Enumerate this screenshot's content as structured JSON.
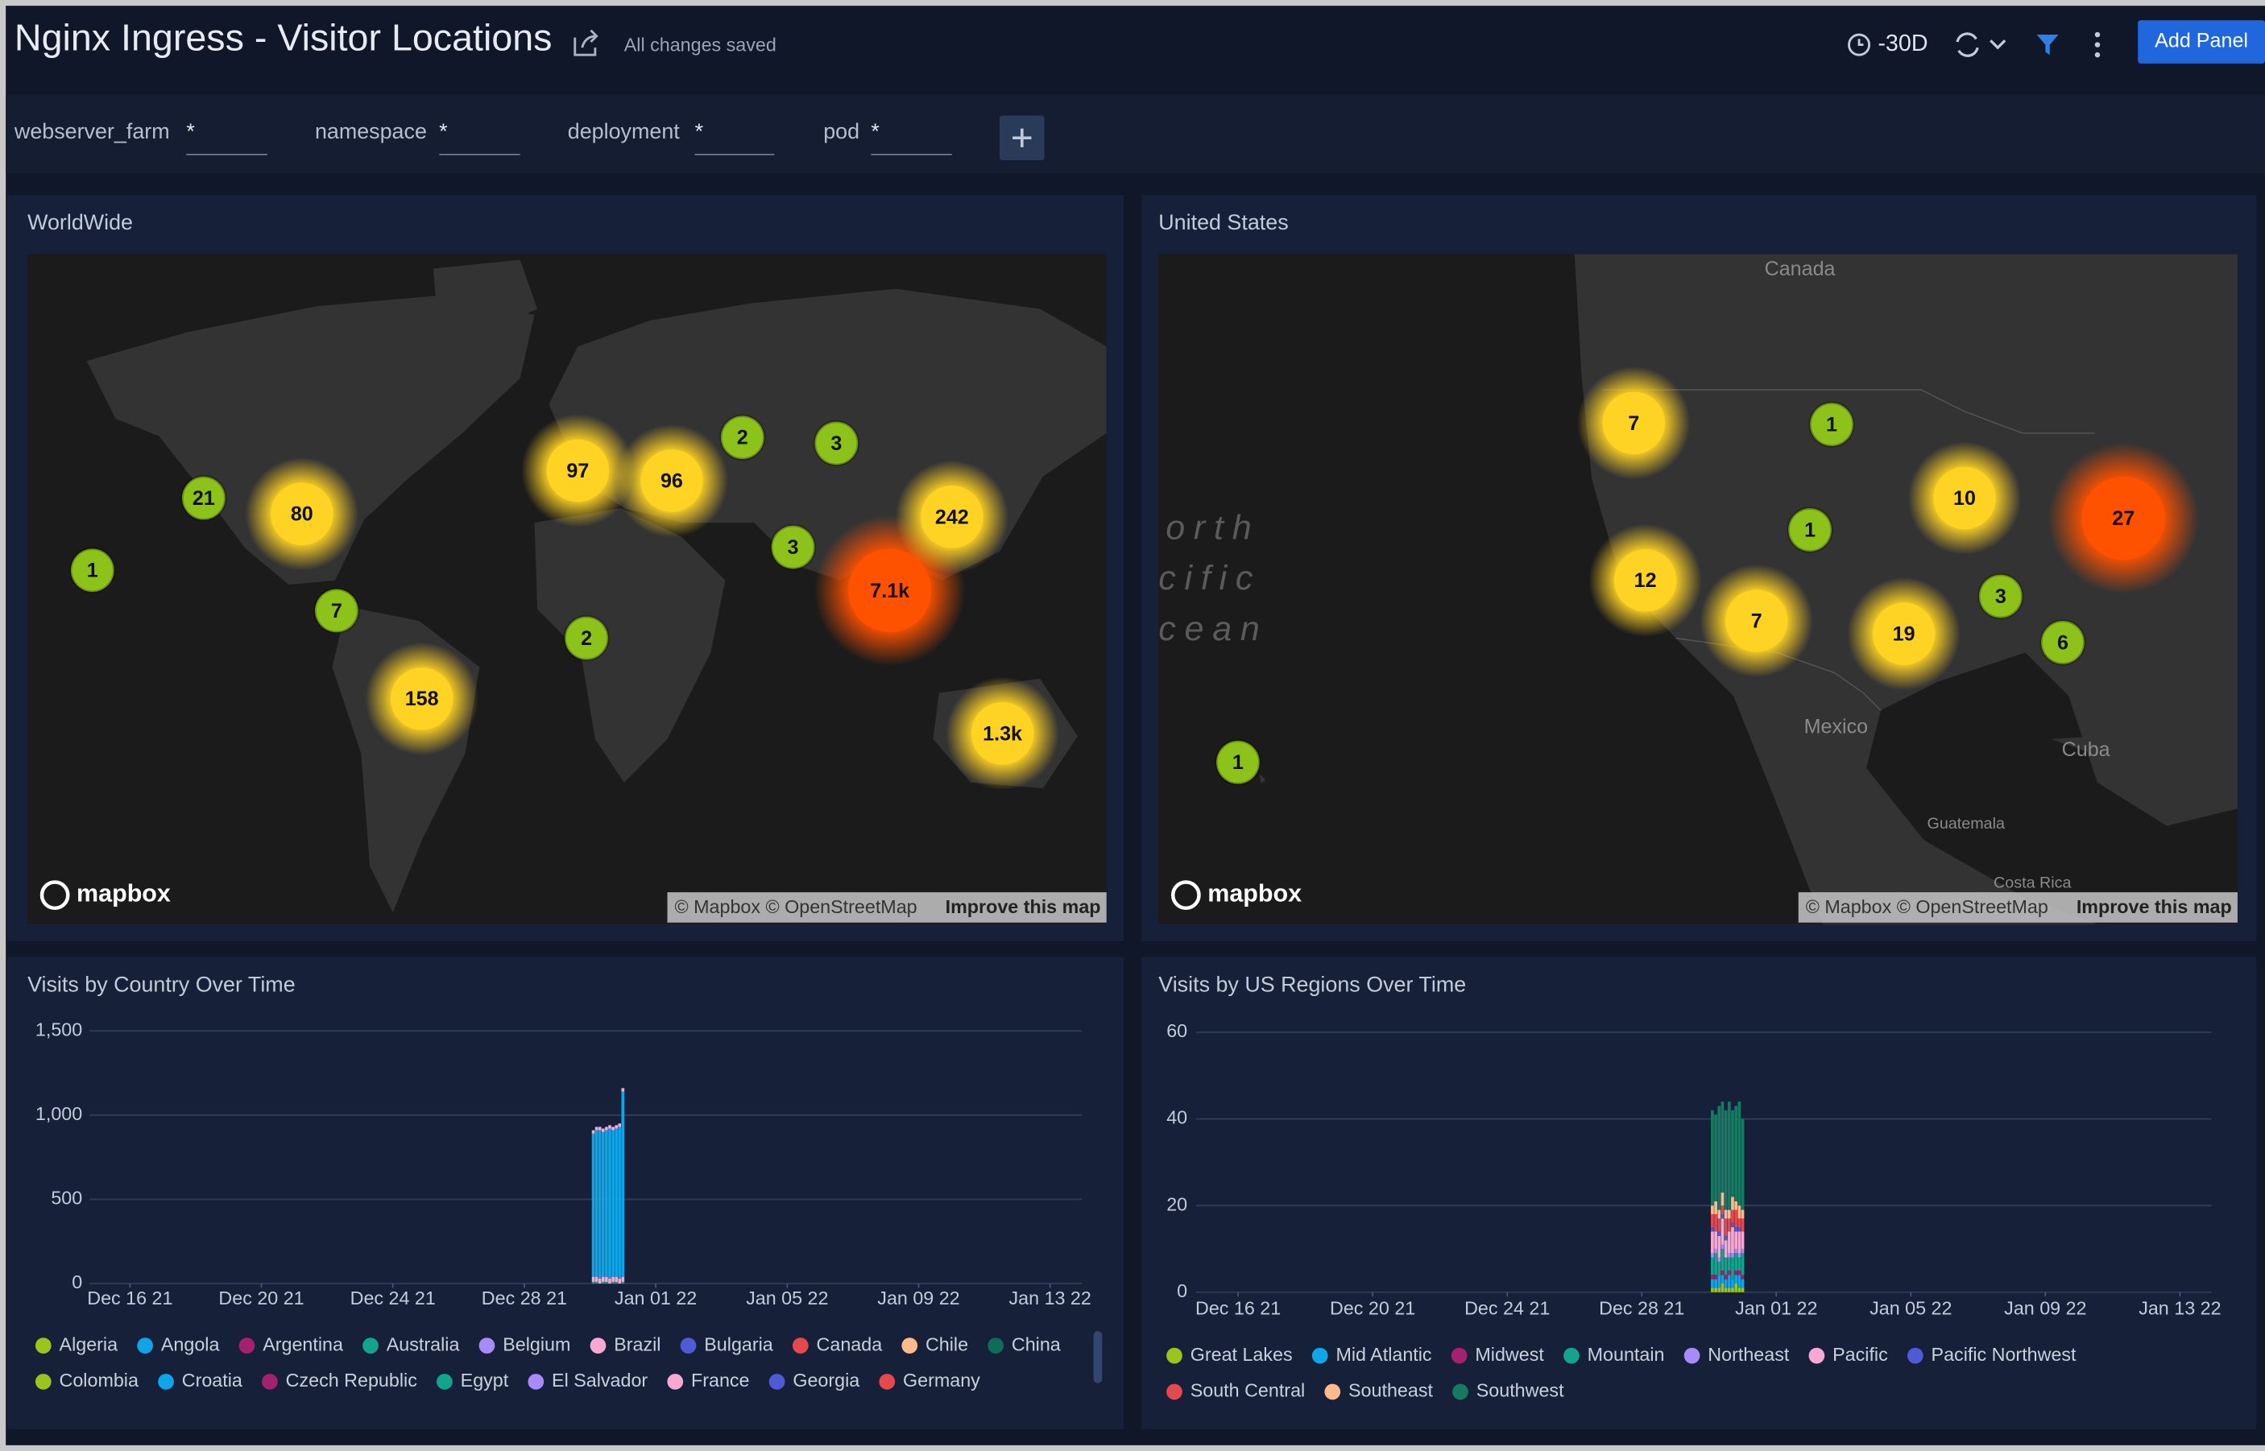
{
  "header": {
    "title": "Nginx Ingress - Visitor Locations",
    "status": "All changes saved",
    "time_range": "-30D",
    "add_panel": "Add Panel"
  },
  "filters": [
    {
      "label": "webserver_farm",
      "value": "*"
    },
    {
      "label": "namespace",
      "value": "*"
    },
    {
      "label": "deployment",
      "value": "*"
    },
    {
      "label": "pod",
      "value": "*"
    }
  ],
  "maps": [
    {
      "title": "WorldWide",
      "logo": "mapbox",
      "attribution": "© Mapbox © OpenStreetMap",
      "improve": "Improve this map",
      "clusters": [
        {
          "value": 1,
          "color": "#8cc21a"
        },
        {
          "value": 21,
          "color": "#8cc21a"
        },
        {
          "value": 80,
          "color": "#ffd324"
        },
        {
          "value": 7,
          "color": "#8cc21a"
        },
        {
          "value": 158,
          "color": "#ffd324"
        },
        {
          "value": 97,
          "color": "#ffd324"
        },
        {
          "value": 96,
          "color": "#ffd324"
        },
        {
          "value": 2,
          "color": "#8cc21a"
        },
        {
          "value": 3,
          "color": "#8cc21a"
        },
        {
          "value": 3,
          "color": "#8cc21a"
        },
        {
          "value": 2,
          "color": "#8cc21a"
        },
        {
          "value": 7100,
          "label": "7.1k",
          "color": "#ff5200"
        },
        {
          "value": 242,
          "color": "#ffd324"
        },
        {
          "value": 1300,
          "label": "1.3k",
          "color": "#ffd324"
        }
      ]
    },
    {
      "title": "United States",
      "logo": "mapbox",
      "attribution": "© Mapbox © OpenStreetMap",
      "improve": "Improve this map",
      "places": [
        "Canada",
        "Mexico",
        "Cuba",
        "Guatemala",
        "Costa Rica"
      ],
      "ocean": [
        "orth",
        "cific",
        "cean"
      ],
      "clusters": [
        {
          "value": 7,
          "color": "#ffd324"
        },
        {
          "value": 1,
          "color": "#8cc21a"
        },
        {
          "value": 1,
          "color": "#8cc21a"
        },
        {
          "value": 10,
          "color": "#ffd324"
        },
        {
          "value": 27,
          "color": "#ff5200"
        },
        {
          "value": 12,
          "color": "#ffd324"
        },
        {
          "value": 7,
          "color": "#ffd324"
        },
        {
          "value": 19,
          "color": "#ffd324"
        },
        {
          "value": 3,
          "color": "#8cc21a"
        },
        {
          "value": 6,
          "color": "#8cc21a"
        },
        {
          "value": 1,
          "color": "#8cc21a"
        }
      ]
    }
  ],
  "chart_data": [
    {
      "type": "bar",
      "title": "Visits by Country Over Time",
      "grid": true,
      "x": [
        14.1,
        14.2,
        14.3,
        14.4,
        14.5,
        14.6,
        14.7,
        14.8,
        14.9,
        15.0
      ],
      "xlim": [
        -1.23,
        28.97
      ],
      "xticks": [
        {
          "value": 0,
          "label": "Dec 16 21"
        },
        {
          "value": 4,
          "label": "Dec 20 21"
        },
        {
          "value": 8,
          "label": "Dec 24 21"
        },
        {
          "value": 12,
          "label": "Dec 28 21"
        },
        {
          "value": 16,
          "label": "Jan 01 22"
        },
        {
          "value": 20,
          "label": "Jan 05 22"
        },
        {
          "value": 24,
          "label": "Jan 09 22"
        },
        {
          "value": 28,
          "label": "Jan 13 22"
        }
      ],
      "ylim": [
        0,
        1500
      ],
      "yticks": [
        0,
        500,
        {
          "value": 1000,
          "label": "1,000"
        },
        {
          "value": 1500,
          "label": "1,500"
        }
      ],
      "series": [
        {
          "name": "Algeria",
          "color": "#9bc41f",
          "values": [
            0,
            0,
            0,
            0,
            0,
            0,
            0,
            0,
            0,
            0
          ]
        },
        {
          "name": "Angola",
          "color": "#0ea5e9",
          "values": [
            0,
            0,
            0,
            0,
            0,
            0,
            0,
            0,
            0,
            0
          ]
        },
        {
          "name": "Argentina",
          "color": "#a3216f",
          "values": [
            0,
            0,
            0,
            0,
            0,
            0,
            0,
            0,
            0,
            0
          ]
        },
        {
          "name": "Australia",
          "color": "#14a38b",
          "values": [
            10,
            10,
            0,
            10,
            10,
            0,
            10,
            10,
            0,
            10
          ]
        },
        {
          "name": "Belgium",
          "color": "#a78bfa",
          "values": [
            0,
            0,
            0,
            0,
            0,
            0,
            0,
            0,
            0,
            0
          ]
        },
        {
          "name": "Brazil",
          "color": "#f9a8d4",
          "values": [
            30,
            30,
            30,
            30,
            30,
            30,
            30,
            30,
            30,
            30
          ]
        },
        {
          "name": "Bulgaria",
          "color": "#4f5bd5",
          "values": [
            0,
            0,
            0,
            0,
            0,
            0,
            0,
            0,
            0,
            0
          ]
        },
        {
          "name": "Canada",
          "color": "#e5484d",
          "values": [
            0,
            0,
            0,
            0,
            0,
            0,
            0,
            0,
            0,
            0
          ]
        },
        {
          "name": "Chile",
          "color": "#fdba8c",
          "values": [
            0,
            0,
            0,
            0,
            0,
            0,
            0,
            0,
            0,
            0
          ]
        },
        {
          "name": "China",
          "color": "#0f6b5a",
          "values": [
            0,
            0,
            0,
            0,
            0,
            0,
            0,
            0,
            0,
            0
          ]
        },
        {
          "name": "Colombia",
          "color": "#9bc41f",
          "values": [
            0,
            0,
            0,
            0,
            0,
            0,
            0,
            0,
            0,
            0
          ]
        },
        {
          "name": "Croatia",
          "color": "#0ea5e9",
          "values": [
            850,
            870,
            880,
            860,
            870,
            890,
            870,
            880,
            900,
            1100
          ]
        },
        {
          "name": "Czech Republic",
          "color": "#a3216f",
          "values": [
            0,
            0,
            0,
            0,
            0,
            0,
            0,
            0,
            0,
            0
          ]
        },
        {
          "name": "Egypt",
          "color": "#14a38b",
          "values": [
            0,
            0,
            0,
            0,
            0,
            0,
            0,
            0,
            0,
            0
          ]
        },
        {
          "name": "El Salvador",
          "color": "#a78bfa",
          "values": [
            0,
            0,
            0,
            0,
            0,
            0,
            0,
            0,
            0,
            0
          ]
        },
        {
          "name": "France",
          "color": "#f9a8d4",
          "values": [
            20,
            20,
            20,
            20,
            20,
            20,
            20,
            20,
            20,
            20
          ]
        },
        {
          "name": "Georgia",
          "color": "#4f5bd5",
          "values": [
            0,
            0,
            0,
            0,
            0,
            0,
            0,
            0,
            0,
            0
          ]
        },
        {
          "name": "Germany",
          "color": "#e5484d",
          "values": [
            0,
            0,
            0,
            0,
            0,
            0,
            0,
            0,
            0,
            0
          ]
        }
      ]
    },
    {
      "type": "bar",
      "title": "Visits by US Regions Over Time",
      "grid": true,
      "x": [
        14.1,
        14.2,
        14.3,
        14.4,
        14.5,
        14.6,
        14.7,
        14.8,
        14.9,
        15.0
      ],
      "xlim": [
        -1.25,
        28.94
      ],
      "xticks": [
        {
          "value": 0,
          "label": "Dec 16 21"
        },
        {
          "value": 4,
          "label": "Dec 20 21"
        },
        {
          "value": 8,
          "label": "Dec 24 21"
        },
        {
          "value": 12,
          "label": "Dec 28 21"
        },
        {
          "value": 16,
          "label": "Jan 01 22"
        },
        {
          "value": 20,
          "label": "Jan 05 22"
        },
        {
          "value": 24,
          "label": "Jan 09 22"
        },
        {
          "value": 28,
          "label": "Jan 13 22"
        }
      ],
      "ylim": [
        0,
        60
      ],
      "yticks": [
        0,
        20,
        40,
        60
      ],
      "series": [
        {
          "name": "Great Lakes",
          "color": "#9bc41f",
          "values": [
            1,
            1,
            1,
            2,
            1,
            1,
            1,
            2,
            1,
            1
          ]
        },
        {
          "name": "Mid Atlantic",
          "color": "#0ea5e9",
          "values": [
            2,
            2,
            3,
            2,
            2,
            3,
            2,
            2,
            3,
            2
          ]
        },
        {
          "name": "Midwest",
          "color": "#a3216f",
          "values": [
            1,
            1,
            0,
            1,
            1,
            1,
            0,
            1,
            1,
            1
          ]
        },
        {
          "name": "Mountain",
          "color": "#14a38b",
          "values": [
            4,
            5,
            3,
            5,
            4,
            3,
            5,
            4,
            3,
            5
          ]
        },
        {
          "name": "Northeast",
          "color": "#a78bfa",
          "values": [
            1,
            1,
            1,
            1,
            0,
            1,
            1,
            1,
            1,
            1
          ]
        },
        {
          "name": "Pacific",
          "color": "#f9a8d4",
          "values": [
            5,
            4,
            5,
            6,
            4,
            5,
            6,
            4,
            5,
            4
          ]
        },
        {
          "name": "Pacific Northwest",
          "color": "#4f5bd5",
          "values": [
            1,
            0,
            1,
            1,
            1,
            0,
            1,
            1,
            1,
            0
          ]
        },
        {
          "name": "South Central",
          "color": "#e5484d",
          "values": [
            3,
            4,
            3,
            2,
            4,
            3,
            3,
            4,
            2,
            3
          ]
        },
        {
          "name": "Southeast",
          "color": "#fdba8c",
          "values": [
            2,
            3,
            2,
            3,
            2,
            2,
            3,
            2,
            3,
            2
          ]
        },
        {
          "name": "Southwest",
          "color": "#167a62",
          "values": [
            22,
            20,
            24,
            21,
            23,
            25,
            20,
            22,
            24,
            21
          ]
        }
      ]
    }
  ]
}
